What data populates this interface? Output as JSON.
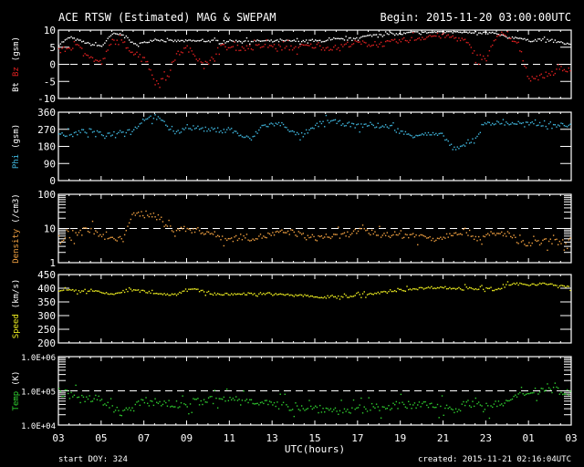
{
  "header": {
    "title": "ACE RTSW (Estimated) MAG & SWEPAM",
    "begin": "Begin: 2015-11-20 03:00:00UTC"
  },
  "footer": {
    "start_doy": "start DOY: 324",
    "created": "created: 2015-11-21 02:16:04UTC"
  },
  "colors": {
    "bt": "#ffffff",
    "bz": "#e02020",
    "phi": "#40b8e0",
    "density": "#f0a040",
    "speed": "#f0f020",
    "temp": "#30d030"
  },
  "chart_data": {
    "type": "scatter",
    "xlabel": "UTC(hours)",
    "x_tick_labels": [
      "03",
      "05",
      "07",
      "09",
      "11",
      "13",
      "15",
      "17",
      "19",
      "21",
      "23",
      "01",
      "03"
    ],
    "x_range_hours": [
      0,
      24
    ],
    "x_step_hours": 0.5,
    "panels": [
      {
        "id": "mag",
        "ylabel_parts": [
          "Bt",
          "Bz",
          "(gsm)"
        ],
        "scale": "linear",
        "ylim": [
          -10,
          10
        ],
        "y_tick_labels": [
          "10",
          "5",
          "0",
          "-5",
          "-10"
        ],
        "y_ticks": [
          10,
          5,
          0,
          -5,
          -10
        ],
        "reference_line": 0,
        "series": [
          {
            "name": "Bt",
            "color": "#ffffff",
            "values": [
              6,
              8,
              7,
              6,
              5.5,
              9,
              9,
              6,
              6.5,
              7.5,
              7,
              7,
              7,
              7,
              7,
              7,
              7,
              7,
              7,
              7,
              7,
              7,
              7,
              7,
              7,
              7,
              7.5,
              7.5,
              8,
              8.5,
              9,
              9,
              9,
              9.5,
              9.5,
              9.5,
              10,
              10,
              9.5,
              9,
              9.5,
              9,
              8,
              8,
              7,
              7.5,
              7,
              6.5,
              6
            ]
          },
          {
            "name": "Bz",
            "color": "#e02020",
            "values": [
              4,
              5,
              5.5,
              2,
              0.5,
              7,
              6.5,
              3.5,
              2.5,
              -5,
              -4,
              3,
              5,
              2,
              0,
              5.5,
              5,
              5,
              5,
              5.5,
              5.5,
              5,
              5,
              5.5,
              5.5,
              5,
              5,
              6,
              6.5,
              6,
              6,
              6.5,
              7,
              7.5,
              8,
              8.5,
              8.5,
              8,
              7,
              3,
              1.5,
              9,
              8,
              6,
              -4,
              -3.5,
              -2.5,
              -1.5,
              -1
            ]
          }
        ]
      },
      {
        "id": "phi",
        "ylabel_parts": [
          "Phi",
          "(gsm)"
        ],
        "scale": "linear",
        "ylim": [
          0,
          360
        ],
        "y_tick_labels": [
          "360",
          "270",
          "180",
          "90",
          "0"
        ],
        "y_ticks": [
          360,
          270,
          180,
          90,
          0
        ],
        "series": [
          {
            "name": "Phi",
            "color": "#40b8e0",
            "values": [
              250,
              240,
              260,
              265,
              245,
              250,
              265,
              270,
              330,
              340,
              300,
              250,
              290,
              280,
              270,
              270,
              275,
              240,
              220,
              290,
              300,
              300,
              250,
              240,
              290,
              320,
              310,
              300,
              290,
              300,
              285,
              290,
              260,
              240,
              250,
              245,
              240,
              160,
              190,
              230,
              310,
              305,
              305,
              305,
              300,
              300,
              300,
              295,
              290
            ]
          }
        ]
      },
      {
        "id": "density",
        "ylabel_parts": [
          "Density",
          "(/cm3)"
        ],
        "scale": "log",
        "ylim": [
          1,
          100
        ],
        "y_tick_labels": [
          "100",
          "10",
          "1"
        ],
        "y_ticks": [
          100,
          10,
          1
        ],
        "reference_line": 10,
        "series": [
          {
            "name": "Density",
            "color": "#f0a040",
            "values": [
              6,
              5,
              9,
              10,
              6,
              5,
              5,
              25,
              30,
              25,
              12,
              10,
              10,
              9,
              8,
              6,
              5,
              6,
              5.5,
              6,
              7,
              8,
              8,
              6,
              5.5,
              6,
              6,
              7,
              9,
              8,
              7,
              7,
              6.5,
              7,
              6,
              5.5,
              6,
              8,
              9,
              5.5,
              6,
              7,
              7.5,
              4,
              3.5,
              4,
              4.5,
              4,
              5
            ]
          }
        ]
      },
      {
        "id": "speed",
        "ylabel_parts": [
          "Speed",
          "(km/s)"
        ],
        "scale": "linear",
        "ylim": [
          200,
          450
        ],
        "y_tick_labels": [
          "450",
          "400",
          "350",
          "300",
          "250",
          "200"
        ],
        "y_ticks": [
          450,
          400,
          350,
          300,
          250,
          200
        ],
        "series": [
          {
            "name": "Speed",
            "color": "#f0f020",
            "values": [
              390,
              395,
              390,
              395,
              385,
              380,
              390,
              395,
              390,
              385,
              380,
              380,
              400,
              395,
              385,
              380,
              380,
              382,
              382,
              383,
              380,
              378,
              378,
              375,
              370,
              368,
              372,
              372,
              378,
              380,
              385,
              390,
              395,
              400,
              402,
              405,
              405,
              400,
              405,
              402,
              400,
              395,
              415,
              418,
              415,
              420,
              415,
              410,
              405
            ]
          }
        ]
      },
      {
        "id": "temp",
        "ylabel_parts": [
          "Temp",
          "(K)"
        ],
        "scale": "log",
        "ylim": [
          10000,
          1000000
        ],
        "y_tick_labels": [
          "1.0E+06",
          "1.0E+05",
          "1.0E+04"
        ],
        "y_ticks": [
          1000000,
          100000,
          10000
        ],
        "reference_line": 100000,
        "series": [
          {
            "name": "Temp",
            "color": "#30d030",
            "values": [
              100000,
              80000,
              60000,
              70000,
              50000,
              30000,
              25000,
              35000,
              50000,
              50000,
              45000,
              40000,
              45000,
              50000,
              55000,
              55000,
              60000,
              60000,
              55000,
              50000,
              40000,
              38000,
              35000,
              35000,
              32000,
              30000,
              28000,
              28000,
              30000,
              33000,
              35000,
              38000,
              40000,
              38000,
              40000,
              40000,
              38000,
              30000,
              40000,
              50000,
              35000,
              40000,
              50000,
              70000,
              100000,
              110000,
              120000,
              100000,
              80000
            ]
          }
        ]
      }
    ]
  }
}
